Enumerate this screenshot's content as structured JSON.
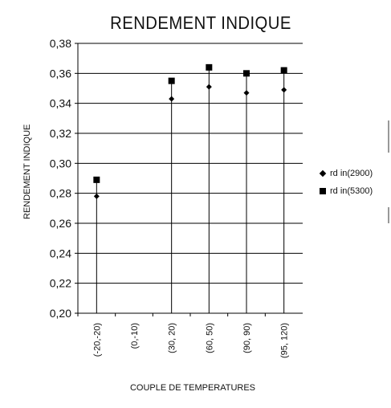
{
  "chart_data": {
    "type": "scatter",
    "title": "RENDEMENT INDIQUE",
    "xlabel": "COUPLE DE TEMPERATURES",
    "ylabel": "RENDEMENT INDIQUE",
    "categories": [
      "(-20,-20)",
      "(0,-10)",
      "(30, 20)",
      "(60, 50)",
      "(90, 90)",
      "(95, 120)"
    ],
    "ylim": [
      0.2,
      0.38
    ],
    "yticks": [
      "0,20",
      "0,22",
      "0,24",
      "0,26",
      "0,28",
      "0,30",
      "0,32",
      "0,34",
      "0,36",
      "0,38"
    ],
    "grid": true,
    "legend_position": "right",
    "series": [
      {
        "name": "rd in(2900)",
        "marker": "diamond",
        "values": [
          0.278,
          null,
          0.343,
          0.351,
          0.347,
          0.349
        ]
      },
      {
        "name": "rd in(5300)",
        "marker": "square",
        "values": [
          0.289,
          null,
          0.355,
          0.364,
          0.36,
          0.362
        ]
      }
    ]
  },
  "colors": {
    "marks": "#000000",
    "grid": "#000000",
    "background": "#ffffff"
  }
}
